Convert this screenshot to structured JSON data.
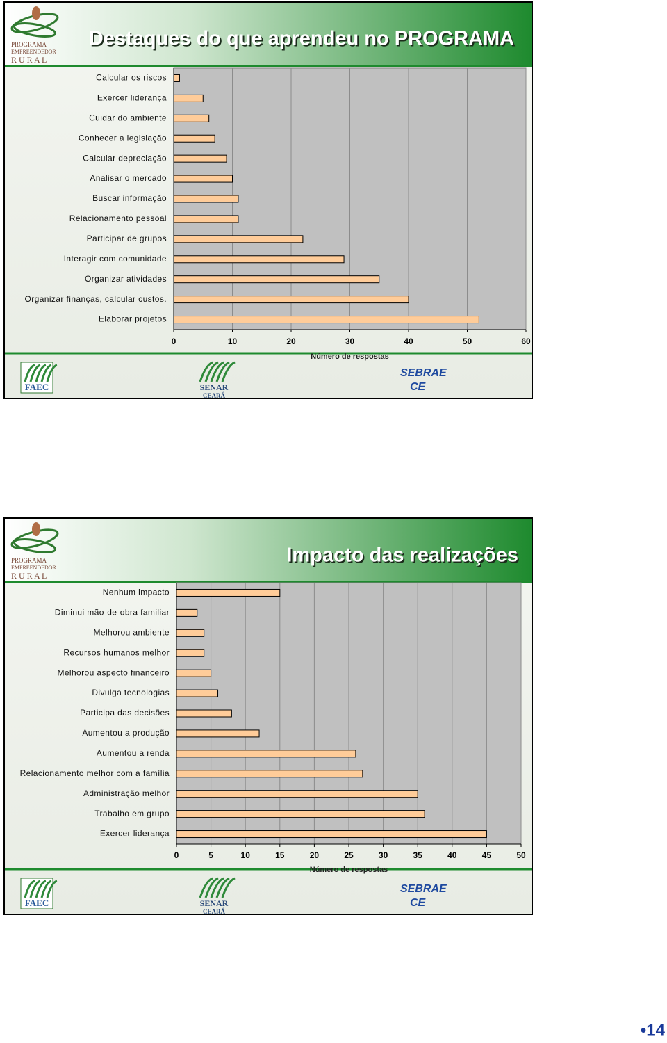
{
  "chart_data": [
    {
      "type": "bar",
      "orientation": "horizontal",
      "title": "Destaques do que aprendeu no PROGRAMA",
      "x_label": "Número de respostas",
      "categories": [
        "Calcular os riscos",
        "Exercer liderança",
        "Cuidar do ambiente",
        "Conhecer a legislação",
        "Calcular depreciação",
        "Analisar o mercado",
        "Buscar informação",
        "Relacionamento pessoal",
        "Participar de grupos",
        "Interagir com comunidade",
        "Organizar atividades",
        "Organizar finanças, calcular custos.",
        "Elaborar projetos"
      ],
      "values": [
        1,
        5,
        6,
        7,
        9,
        10,
        11,
        11,
        22,
        29,
        35,
        40,
        52
      ],
      "color": "#ffcc99",
      "xlim": [
        0,
        60
      ],
      "xticks": [
        0,
        10,
        20,
        30,
        40,
        50,
        60
      ],
      "grid": true
    },
    {
      "type": "bar",
      "orientation": "horizontal",
      "title": "Impacto das realizações",
      "x_label": "Número de respostas",
      "categories": [
        "Nenhum impacto",
        "Diminui mão-de-obra familiar",
        "Melhorou ambiente",
        "Recursos humanos melhor",
        "Melhorou aspecto financeiro",
        "Divulga tecnologias",
        "Participa das decisões",
        "Aumentou a produção",
        "Aumentou a renda",
        "Relacionamento melhor com a família",
        "Administração melhor",
        "Trabalho em grupo",
        "Exercer liderança"
      ],
      "values": [
        15,
        3,
        4,
        4,
        5,
        6,
        8,
        12,
        26,
        27,
        35,
        36,
        45
      ],
      "color": "#ffcc99",
      "xlim": [
        0,
        50
      ],
      "xticks": [
        0,
        5,
        10,
        15,
        20,
        25,
        30,
        35,
        40,
        45,
        50
      ],
      "grid": true
    }
  ],
  "logos": {
    "program": [
      "PROGRAMA",
      "EMPREENDEDOR",
      "R U R A L"
    ],
    "faec": "FAEC",
    "senar": "SENAR",
    "senar_sub": "CEARÁ",
    "sebrae": "SEBRAE",
    "sebrae_sub": "CE"
  },
  "page_number": "•14"
}
